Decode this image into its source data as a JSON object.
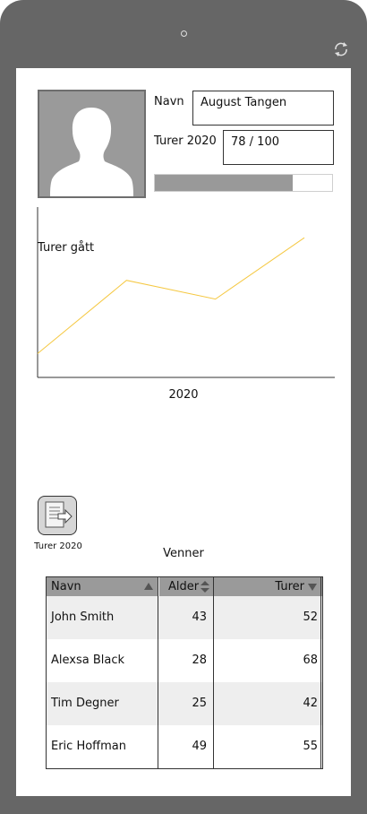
{
  "profile": {
    "name_label": "Navn",
    "name_value": "August Tangen",
    "trips_label": "Turer 2020",
    "trips_value": "78 / 100",
    "progress_fraction": 0.78
  },
  "chart_data": {
    "type": "line",
    "title": "Turer gått",
    "xlabel": "2020",
    "ylabel": "",
    "x": [
      0,
      1,
      2,
      3
    ],
    "series": [
      {
        "values": [
          14,
          57,
          46,
          82
        ]
      }
    ],
    "ylim": [
      0,
      100
    ],
    "grid": false,
    "line_color": "#f5c842"
  },
  "action": {
    "icon": "document-export-icon",
    "label": "Turer 2020"
  },
  "friends": {
    "title": "Venner",
    "columns": [
      "Navn",
      "Alder",
      "Turer"
    ],
    "rows": [
      {
        "name": "John Smith",
        "age": "43",
        "trips": "52"
      },
      {
        "name": "Alexsa Black",
        "age": "28",
        "trips": "68"
      },
      {
        "name": "Tim Degner",
        "age": "25",
        "trips": "42"
      },
      {
        "name": "Eric Hoffman",
        "age": "49",
        "trips": "55"
      }
    ]
  },
  "colors": {
    "device_frame": "#666666",
    "header_gray": "#9a9a9a",
    "row_alt": "#eeeeee"
  }
}
